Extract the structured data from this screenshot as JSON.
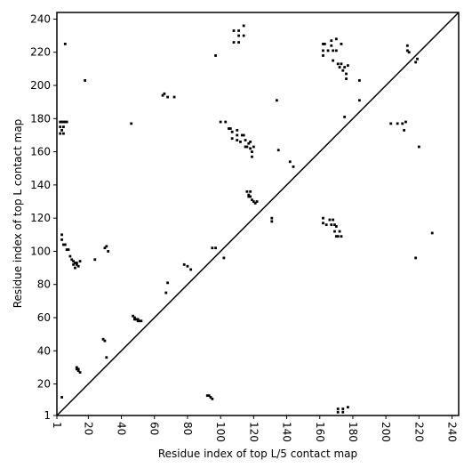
{
  "chart_data": {
    "type": "scatter",
    "marker": "square",
    "diagonal": true,
    "grid": false,
    "xlabel": "Residue index of top L/5 contact map",
    "ylabel": "Residue index of top L contact map",
    "xlim": [
      1,
      244
    ],
    "ylim": [
      1,
      244
    ],
    "xticks": [
      1,
      20,
      40,
      60,
      80,
      100,
      120,
      140,
      160,
      180,
      200,
      220,
      240
    ],
    "yticks": [
      1,
      20,
      40,
      60,
      80,
      100,
      120,
      140,
      160,
      180,
      200,
      220,
      240
    ],
    "series": [
      {
        "color": "#000000",
        "x": [
          3,
          4,
          5,
          6,
          7,
          3,
          5,
          3,
          5,
          4,
          6,
          18,
          4,
          4,
          5,
          6,
          7,
          8,
          9,
          10,
          11,
          12,
          13,
          14,
          15,
          12,
          13,
          11,
          13,
          14,
          14,
          15,
          13,
          4,
          24,
          29,
          30,
          30,
          31,
          32,
          31,
          46,
          47,
          48,
          49,
          50,
          51,
          52,
          48,
          50,
          65,
          66,
          68,
          72,
          68,
          67,
          78,
          80,
          82,
          92,
          93,
          94,
          95,
          95,
          97,
          97,
          100,
          103,
          105,
          106,
          107,
          107,
          110,
          110,
          110,
          112,
          113,
          114,
          115,
          115,
          116,
          117,
          118,
          118,
          119,
          119,
          120,
          108,
          111,
          111,
          114,
          114,
          108,
          111,
          102,
          116,
          117,
          118,
          118,
          119,
          120,
          121,
          122,
          117,
          131,
          131,
          134,
          135,
          142,
          144,
          162,
          163,
          162,
          162,
          165,
          167,
          167,
          168,
          168,
          170,
          170,
          171,
          172,
          173,
          173,
          174,
          175,
          176,
          176,
          177,
          184,
          184,
          162,
          162,
          164,
          166,
          167,
          168,
          169,
          169,
          170,
          171,
          172,
          173,
          170,
          175,
          171,
          171,
          174,
          174,
          177,
          203,
          207,
          210,
          211,
          212,
          213,
          213,
          214,
          218,
          219,
          220,
          218,
          228
        ],
        "values": [
          178,
          178,
          178,
          178,
          178,
          175,
          175,
          171,
          171,
          173,
          225,
          203,
          110,
          107,
          104,
          104,
          101,
          101,
          97,
          95,
          94,
          93,
          92,
          91,
          94,
          90,
          93,
          92,
          30,
          29,
          28,
          27,
          29,
          12,
          95,
          47,
          46,
          102,
          103,
          100,
          36,
          177,
          61,
          60,
          59,
          58,
          58,
          58,
          59,
          59,
          194,
          195,
          193,
          193,
          81,
          75,
          92,
          91,
          89,
          13,
          13,
          12,
          11,
          102,
          102,
          218,
          178,
          178,
          174,
          174,
          172,
          168,
          173,
          170,
          167,
          166,
          170,
          170,
          167,
          163,
          163,
          165,
          166,
          162,
          160,
          157,
          163,
          233,
          230,
          233,
          230,
          236,
          226,
          226,
          96,
          136,
          134,
          136,
          133,
          131,
          130,
          129,
          130,
          133,
          120,
          118,
          191,
          161,
          154,
          151,
          225,
          225,
          221,
          218,
          221,
          224,
          227,
          215,
          221,
          228,
          221,
          213,
          211,
          225,
          213,
          209,
          211,
          207,
          204,
          212,
          203,
          191,
          120,
          117,
          116,
          119,
          116,
          119,
          112,
          116,
          109,
          109,
          112,
          109,
          115,
          181,
          5,
          3,
          5,
          3,
          6,
          177,
          177,
          177,
          173,
          178,
          224,
          221,
          220,
          214,
          216,
          163,
          96,
          111
        ]
      }
    ]
  }
}
